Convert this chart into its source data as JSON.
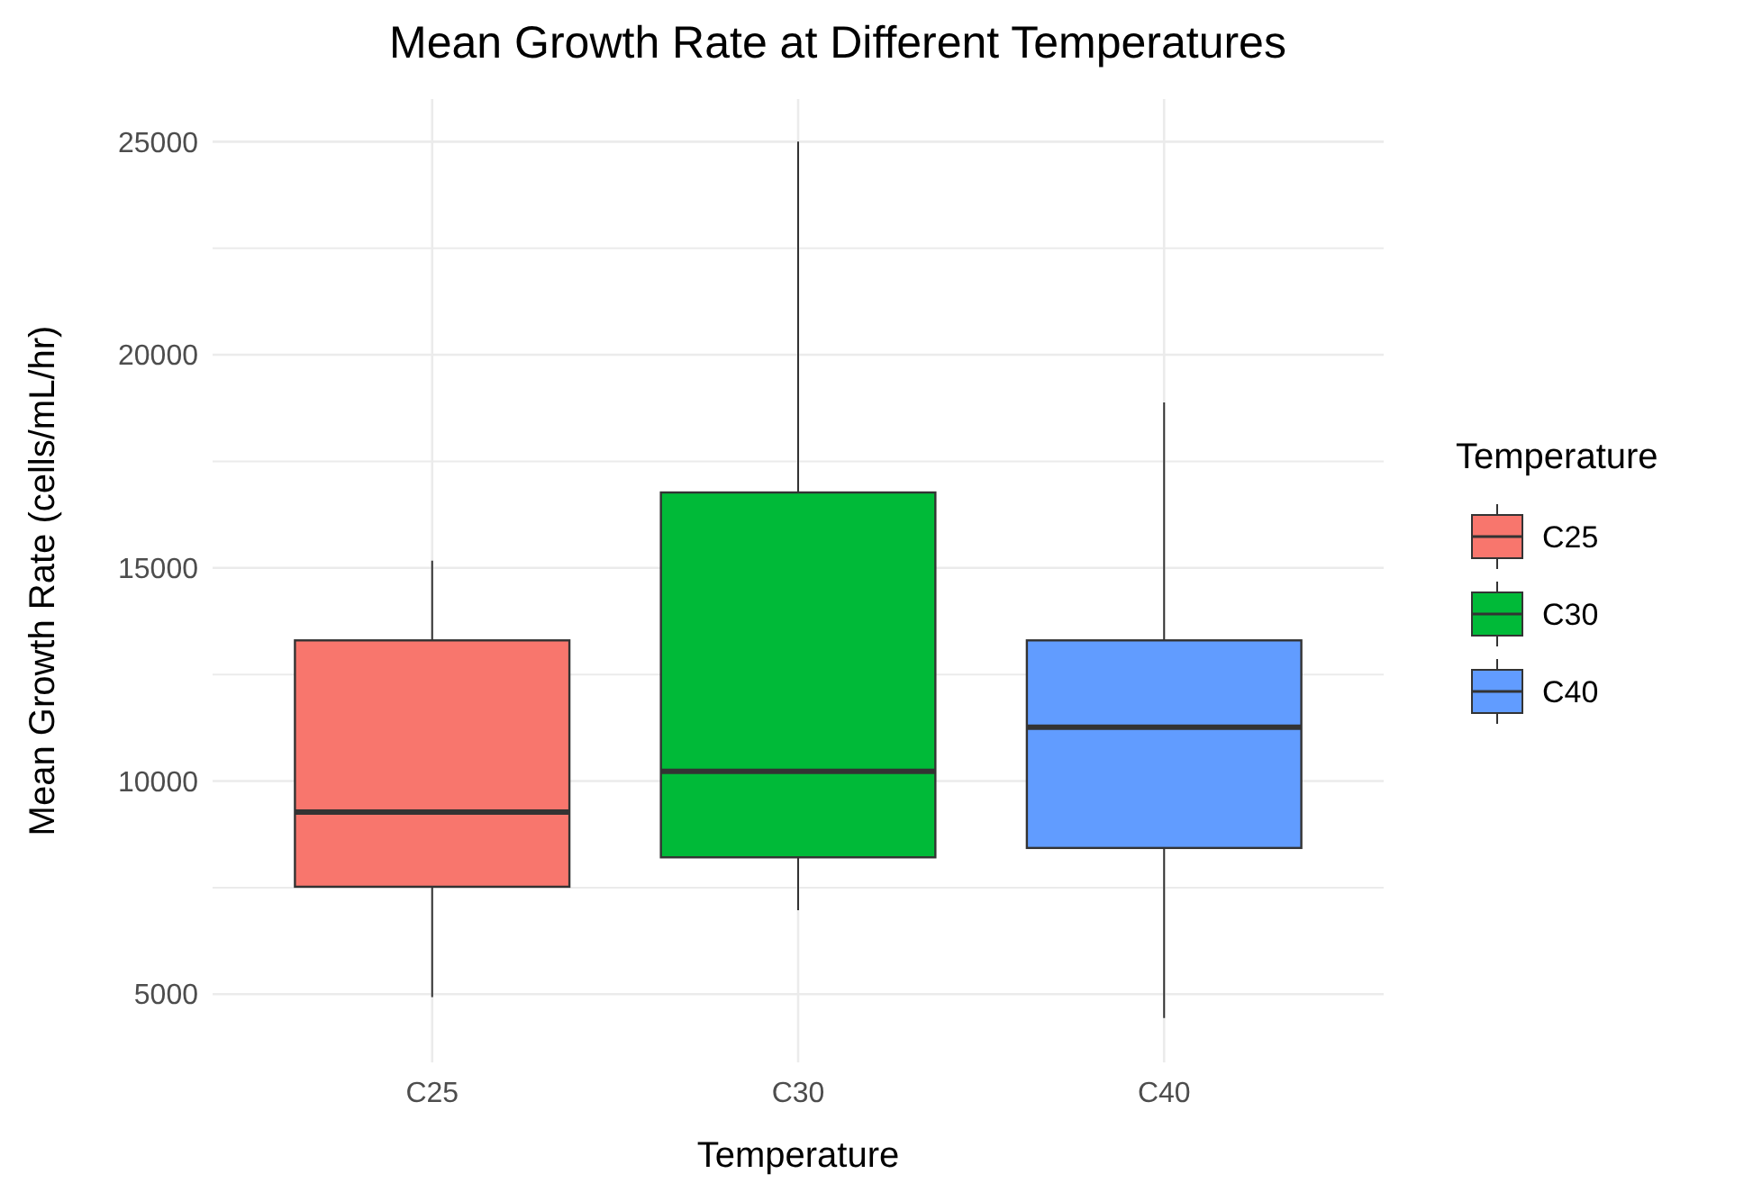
{
  "chart_data": {
    "type": "box",
    "title": "Mean Growth Rate at Different Temperatures",
    "xlabel": "Temperature",
    "ylabel": "Mean Growth Rate (cells/mL/hr)",
    "legend_title": "Temperature",
    "legend": "right",
    "grid": true,
    "categories": [
      "C25",
      "C30",
      "C40"
    ],
    "series": [
      {
        "name": "C25",
        "color": "#f8766d",
        "boxes": [
          {
            "low": 4930,
            "q1": 7520,
            "median": 9270,
            "q3": 13300,
            "high": 15170
          },
          null,
          null
        ]
      },
      {
        "name": "C30",
        "color": "#00ba38",
        "boxes": [
          null,
          {
            "low": 6970,
            "q1": 8210,
            "median": 10230,
            "q3": 16770,
            "high": 25000
          },
          null
        ]
      },
      {
        "name": "C40",
        "color": "#619cff",
        "boxes": [
          null,
          null,
          {
            "low": 4440,
            "q1": 8430,
            "median": 11260,
            "q3": 13300,
            "high": 18880
          }
        ]
      }
    ],
    "ylim": [
      3400,
      26000
    ],
    "yticks": [
      5000,
      {
        "value": 7500,
        "label": null
      },
      10000,
      {
        "value": 12500,
        "label": null
      },
      15000,
      {
        "value": 17500,
        "label": null
      },
      20000,
      {
        "value": 22500,
        "label": null
      },
      25000
    ]
  }
}
